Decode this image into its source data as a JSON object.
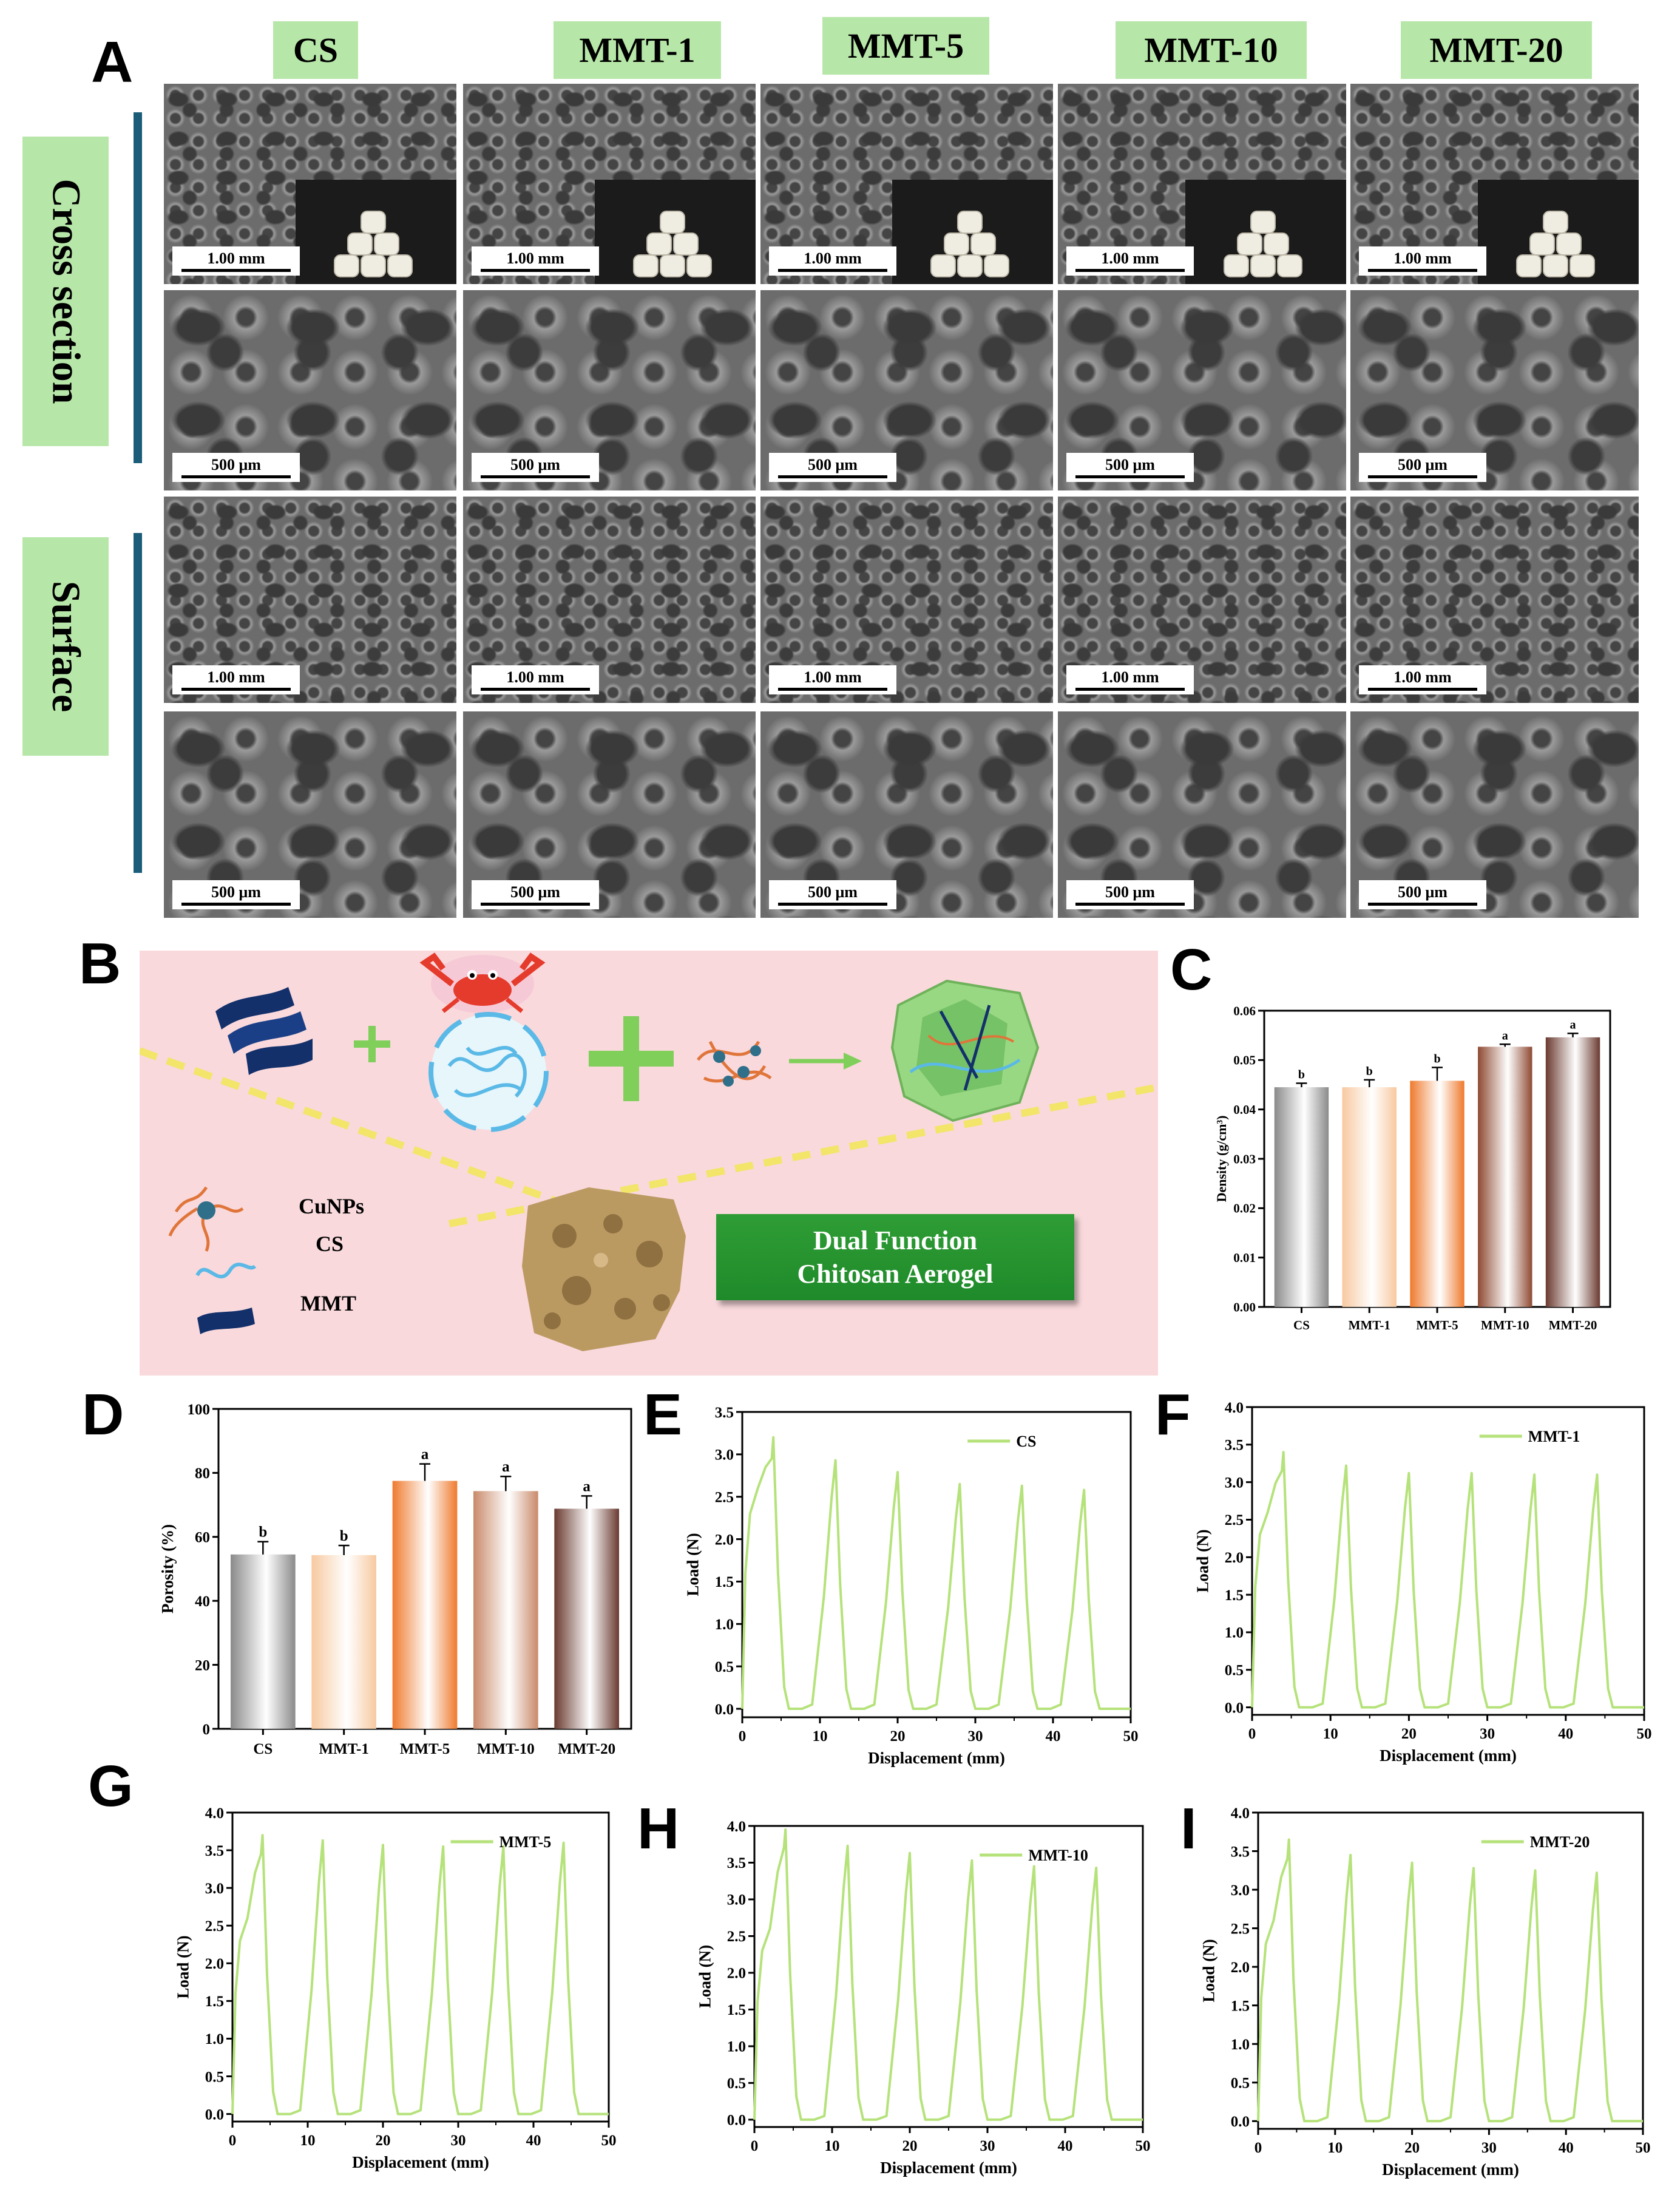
{
  "panels": {
    "A": "A",
    "B": "B",
    "C": "C",
    "D": "D",
    "E": "E",
    "F": "F",
    "G": "G",
    "H": "H",
    "I": "I"
  },
  "sem_grid": {
    "column_labels": [
      "CS",
      "MMT-1",
      "MMT-5",
      "MMT-10",
      "MMT-20"
    ],
    "row_groups": [
      "Cross section",
      "Surface"
    ],
    "scale_labels": {
      "row1": [
        "1.00 mm",
        "1.00 mm",
        "1.00 mm",
        "1.00 mm",
        "1.00 mm"
      ],
      "row2": [
        "500 μm",
        "500 μm",
        "500 μm",
        "500 μm",
        "500 μm"
      ],
      "row3": [
        "1.00 mm",
        "1.00 mm",
        "1.00 mm",
        "1.00 mm",
        "1.00 mm"
      ],
      "row4": [
        "500 μm",
        "500 μm",
        "500 μm",
        "500 μm",
        "500 μm"
      ]
    }
  },
  "schematic": {
    "legend": [
      "CuNPs",
      "CS",
      "MMT"
    ],
    "box_line1": "Dual Function",
    "box_line2": "Chitosan Aerogel",
    "colors": {
      "background": "#f9d9dc",
      "mmt": "#13306b",
      "cs": "#5ab9e6",
      "cunp_arms": "#e0753a",
      "cunp_core": "#2f6f8a",
      "plus": "#7fcf5a",
      "dashed_line": "#f2e56a",
      "aerogel": "#bb9a62"
    }
  },
  "chart_data": [
    {
      "panel": "C",
      "type": "bar",
      "categories": [
        "CS",
        "MMT-1",
        "MMT-5",
        "MMT-10",
        "MMT-20"
      ],
      "values": [
        0.0445,
        0.0445,
        0.0458,
        0.0527,
        0.0546
      ],
      "errors": [
        0.0008,
        0.0015,
        0.0027,
        0.0005,
        0.0008
      ],
      "significance": [
        "b",
        "b",
        "b",
        "a",
        "a"
      ],
      "ylabel": "Density (g/cm³)",
      "ylim": [
        0,
        0.06
      ],
      "yticks": [
        "0.00",
        "0.01",
        "0.02",
        "0.03",
        "0.04",
        "0.05",
        "0.06"
      ],
      "bar_colors": [
        "#8a8a8a",
        "#f7c9a0",
        "#ef7a2e",
        "#8e4a32",
        "#6a3a30"
      ]
    },
    {
      "panel": "D",
      "type": "bar",
      "categories": [
        "CS",
        "MMT-1",
        "MMT-5",
        "MMT-10",
        "MMT-20"
      ],
      "values": [
        54.5,
        54.3,
        77.5,
        74.3,
        68.8
      ],
      "errors": [
        4.0,
        3.0,
        5.3,
        4.6,
        4.0
      ],
      "significance": [
        "b",
        "b",
        "a",
        "a",
        "a"
      ],
      "ylabel": "Porosity (%)",
      "ylim": [
        0,
        100
      ],
      "yticks": [
        "0",
        "20",
        "40",
        "60",
        "80",
        "100"
      ],
      "bar_colors": [
        "#8a8a8a",
        "#f7c9a0",
        "#ef7a2e",
        "#c98a6a",
        "#6a3a30"
      ]
    },
    {
      "panel": "E",
      "type": "line",
      "series_name": "CS",
      "peaks": [
        [
          4,
          3.2
        ],
        [
          12,
          2.93
        ],
        [
          20,
          2.79
        ],
        [
          28,
          2.65
        ],
        [
          36,
          2.63
        ],
        [
          44,
          2.58
        ]
      ],
      "xlabel": "Displacement (mm)",
      "ylabel": "Load (N)",
      "xlim": [
        0,
        50
      ],
      "ylim": [
        -0.1,
        3.5
      ],
      "xticks": [
        "0",
        "10",
        "20",
        "30",
        "40",
        "50"
      ],
      "yticks": [
        "0.0",
        "0.5",
        "1.0",
        "1.5",
        "2.0",
        "2.5",
        "3.0",
        "3.5"
      ]
    },
    {
      "panel": "F",
      "type": "line",
      "series_name": "MMT-1",
      "peaks": [
        [
          4,
          3.4
        ],
        [
          12,
          3.22
        ],
        [
          20,
          3.12
        ],
        [
          28,
          3.12
        ],
        [
          36,
          3.1
        ],
        [
          44,
          3.1
        ]
      ],
      "xlabel": "Displacement (mm)",
      "ylabel": "Load (N)",
      "xlim": [
        0,
        50
      ],
      "ylim": [
        -0.1,
        4.0
      ],
      "xticks": [
        "0",
        "10",
        "20",
        "30",
        "40",
        "50"
      ],
      "yticks": [
        "0.0",
        "0.5",
        "1.0",
        "1.5",
        "2.0",
        "2.5",
        "3.0",
        "3.5",
        "4.0"
      ]
    },
    {
      "panel": "G",
      "type": "line",
      "series_name": "MMT-5",
      "peaks": [
        [
          4,
          3.7
        ],
        [
          12,
          3.63
        ],
        [
          20,
          3.57
        ],
        [
          28,
          3.55
        ],
        [
          36,
          3.55
        ],
        [
          44,
          3.6
        ]
      ],
      "xlabel": "Displacement (mm)",
      "ylabel": "Load (N)",
      "xlim": [
        0,
        50
      ],
      "ylim": [
        -0.1,
        4.0
      ],
      "xticks": [
        "0",
        "10",
        "20",
        "30",
        "40",
        "50"
      ],
      "yticks": [
        "0.0",
        "0.5",
        "1.0",
        "1.5",
        "2.0",
        "2.5",
        "3.0",
        "3.5",
        "4.0"
      ]
    },
    {
      "panel": "H",
      "type": "line",
      "series_name": "MMT-10",
      "peaks": [
        [
          4,
          3.95
        ],
        [
          12,
          3.73
        ],
        [
          20,
          3.63
        ],
        [
          28,
          3.53
        ],
        [
          36,
          3.45
        ],
        [
          44,
          3.43
        ]
      ],
      "xlabel": "Displacement (mm)",
      "ylabel": "Load (N)",
      "xlim": [
        0,
        50
      ],
      "ylim": [
        -0.1,
        4.0
      ],
      "xticks": [
        "0",
        "10",
        "20",
        "30",
        "40",
        "50"
      ],
      "yticks": [
        "0.0",
        "0.5",
        "1.0",
        "1.5",
        "2.0",
        "2.5",
        "3.0",
        "3.5",
        "4.0"
      ]
    },
    {
      "panel": "I",
      "type": "line",
      "series_name": "MMT-20",
      "peaks": [
        [
          4,
          3.65
        ],
        [
          12,
          3.45
        ],
        [
          20,
          3.35
        ],
        [
          28,
          3.28
        ],
        [
          36,
          3.25
        ],
        [
          44,
          3.22
        ]
      ],
      "xlabel": "Displacement (mm)",
      "ylabel": "Load (N)",
      "xlim": [
        0,
        50
      ],
      "ylim": [
        -0.1,
        4.0
      ],
      "xticks": [
        "0",
        "10",
        "20",
        "30",
        "40",
        "50"
      ],
      "yticks": [
        "0.0",
        "0.5",
        "1.0",
        "1.5",
        "2.0",
        "2.5",
        "3.0",
        "3.5",
        "4.0"
      ]
    }
  ],
  "line_color": "#b5e27a"
}
